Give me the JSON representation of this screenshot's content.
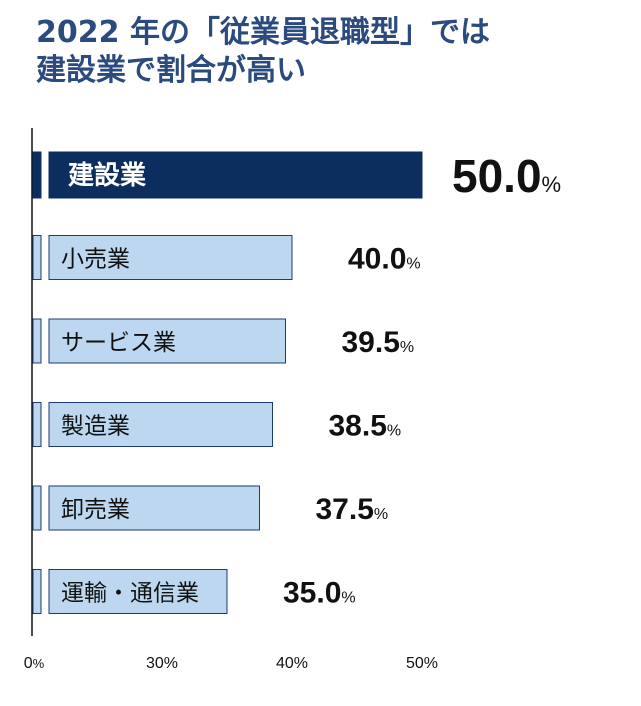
{
  "title_lines": [
    "2022 年の「従業員退職型」では",
    "建設業で割合が高い"
  ],
  "colors": {
    "title": "#2b4a7e",
    "highlight_bar": "#0b2e5e",
    "bar": "#bcd7ef",
    "bar_border": "#1e3d6e",
    "axis": "#111111"
  },
  "chart_data": {
    "type": "bar",
    "orientation": "horizontal",
    "categories": [
      "建設業",
      "小売業",
      "サービス業",
      "製造業",
      "卸売業",
      "運輸・通信業"
    ],
    "values": [
      50.0,
      40.0,
      39.5,
      38.5,
      37.5,
      35.0
    ],
    "value_labels": [
      "50.0",
      "40.0",
      "39.5",
      "38.5",
      "37.5",
      "35.0"
    ],
    "unit": "%",
    "highlight_index": 0,
    "x_ticks": [
      "0",
      "30%",
      "40%",
      "50%"
    ],
    "x_tick_values": [
      0,
      30,
      40,
      50
    ],
    "x_tick_zero_suffix": "%",
    "axis_break": true,
    "xlim": [
      0,
      50
    ]
  }
}
